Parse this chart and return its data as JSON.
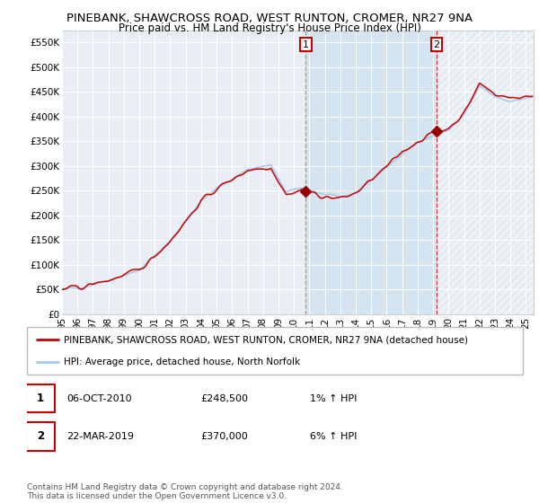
{
  "title": "PINEBANK, SHAWCROSS ROAD, WEST RUNTON, CROMER, NR27 9NA",
  "subtitle": "Price paid vs. HM Land Registry's House Price Index (HPI)",
  "ylabel_ticks": [
    "£0",
    "£50K",
    "£100K",
    "£150K",
    "£200K",
    "£250K",
    "£300K",
    "£350K",
    "£400K",
    "£450K",
    "£500K",
    "£550K"
  ],
  "ytick_values": [
    0,
    50000,
    100000,
    150000,
    200000,
    250000,
    300000,
    350000,
    400000,
    450000,
    500000,
    550000
  ],
  "ylim": [
    0,
    575000
  ],
  "xlim_start": 1995.0,
  "xlim_end": 2025.5,
  "hpi_color": "#a8c8e8",
  "price_color": "#cc0000",
  "plot_bg_color": "#e8eef4",
  "sale1_x": 2010.76,
  "sale1_y": 248500,
  "sale2_x": 2019.22,
  "sale2_y": 370000,
  "legend_line1": "PINEBANK, SHAWCROSS ROAD, WEST RUNTON, CROMER, NR27 9NA (detached house)",
  "legend_line2": "HPI: Average price, detached house, North Norfolk",
  "footer": "Contains HM Land Registry data © Crown copyright and database right 2024.\nThis data is licensed under the Open Government Licence v3.0.",
  "title_fontsize": 9.5,
  "subtitle_fontsize": 8.5,
  "axis_fontsize": 7.5,
  "shade_color": "#c8dff0",
  "hatch_color": "#d8e8f0"
}
